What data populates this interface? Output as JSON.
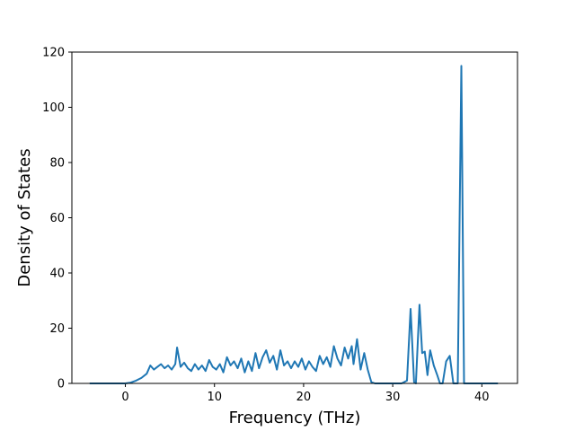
{
  "chart_data": {
    "type": "line",
    "title": "",
    "xlabel": "Frequency (THz)",
    "ylabel": "Density of States",
    "xlim": [
      -6,
      44
    ],
    "ylim": [
      0,
      120
    ],
    "xticks": [
      0,
      10,
      20,
      30,
      40
    ],
    "xtick_labels": [
      "0",
      "10",
      "20",
      "30",
      "40"
    ],
    "yticks": [
      0,
      20,
      40,
      60,
      80,
      100,
      120
    ],
    "ytick_labels": [
      "0",
      "20",
      "40",
      "60",
      "80",
      "100",
      "120"
    ],
    "grid": false,
    "legend": "none",
    "series": [
      {
        "color": "#1f77b4",
        "x": [
          -4.0,
          -2.0,
          0.0,
          0.6,
          1.2,
          1.8,
          2.4,
          2.8,
          3.2,
          3.6,
          4.0,
          4.4,
          4.8,
          5.2,
          5.6,
          5.8,
          6.2,
          6.6,
          7.0,
          7.4,
          7.8,
          8.2,
          8.6,
          9.0,
          9.4,
          9.8,
          10.2,
          10.6,
          11.0,
          11.4,
          11.8,
          12.2,
          12.6,
          13.0,
          13.4,
          13.8,
          14.2,
          14.6,
          15.0,
          15.4,
          15.8,
          16.2,
          16.6,
          17.0,
          17.4,
          17.8,
          18.2,
          18.6,
          19.0,
          19.4,
          19.8,
          20.2,
          20.6,
          21.0,
          21.4,
          21.8,
          22.2,
          22.6,
          23.0,
          23.4,
          23.8,
          24.2,
          24.6,
          25.0,
          25.4,
          25.6,
          26.0,
          26.4,
          26.8,
          27.2,
          27.6,
          28.0,
          30.0,
          31.0,
          31.6,
          32.0,
          32.4,
          32.6,
          33.0,
          33.3,
          33.6,
          33.9,
          34.2,
          34.6,
          35.0,
          35.3,
          35.6,
          36.0,
          36.4,
          36.8,
          37.0,
          37.3,
          37.7,
          38.0,
          38.3,
          39.0,
          41.8
        ],
        "values": [
          0,
          0,
          0,
          0.3,
          1.0,
          2.0,
          3.5,
          6.5,
          5.0,
          6.0,
          7.0,
          5.5,
          6.5,
          5.0,
          7.0,
          13.0,
          6.0,
          7.5,
          5.5,
          4.5,
          7.0,
          5.0,
          6.5,
          4.5,
          8.5,
          6.0,
          5.0,
          7.0,
          4.0,
          9.5,
          6.5,
          8.0,
          5.5,
          9.0,
          4.0,
          8.0,
          4.5,
          11.0,
          5.5,
          9.5,
          12.0,
          7.5,
          10.0,
          5.0,
          12.0,
          6.5,
          8.0,
          5.5,
          8.0,
          6.0,
          9.0,
          5.0,
          8.0,
          6.0,
          4.5,
          10.0,
          7.0,
          9.5,
          6.0,
          13.5,
          9.0,
          6.5,
          13.0,
          9.0,
          13.5,
          7.0,
          16.0,
          5.0,
          11.0,
          5.0,
          0.5,
          0,
          0,
          0,
          1.0,
          27.0,
          0.5,
          0,
          28.5,
          11.0,
          11.5,
          3.0,
          12.0,
          6.5,
          3.0,
          0,
          0,
          8.0,
          10.0,
          0,
          0,
          0,
          115.0,
          0,
          0,
          0,
          0
        ]
      }
    ]
  }
}
